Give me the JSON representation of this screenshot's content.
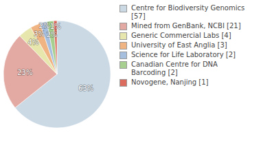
{
  "chart_data": {
    "type": "pie",
    "categories": [
      "Centre for Biodiversity Genomics [57]",
      "Mined from GenBank, NCBI [21]",
      "Generic Commercial Labs [4]",
      "University of East Anglia [3]",
      "Science for Life Laboratory [2]",
      "Canadian Centre for DNA Barcoding [2]",
      "Novogene, Nanjing [1]"
    ],
    "values": [
      63,
      23,
      4,
      3,
      2,
      2,
      1
    ],
    "value_labels": [
      "63%",
      "23%",
      "4%",
      "3%",
      "2%",
      "2%",
      "1%"
    ],
    "colors": [
      "#cbd9e5",
      "#e2aaa3",
      "#e6e6ad",
      "#efb482",
      "#a7bfdf",
      "#a7cf90",
      "#dc6c5d"
    ],
    "data_labels": true,
    "legend": "right"
  }
}
